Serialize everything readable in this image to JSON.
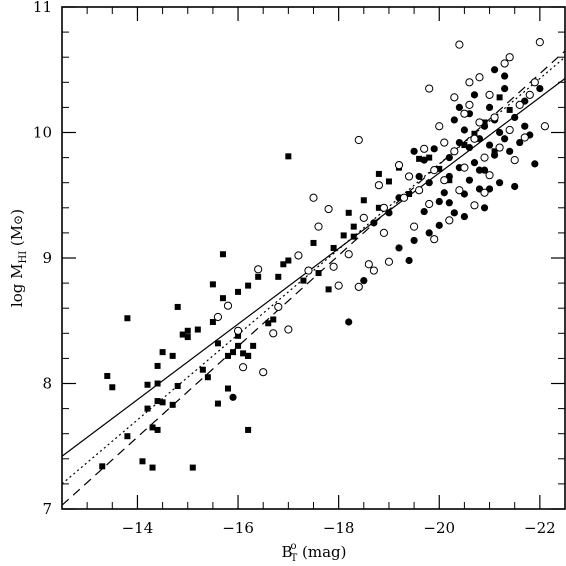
{
  "chart_data": {
    "type": "scatter",
    "title": "",
    "xlabel": {
      "main": "B",
      "sup": "o",
      "sub": "T",
      "rest": " (mag)"
    },
    "ylabel": {
      "main": "log  M",
      "sub": "HI",
      "rest": " (M",
      "sym": "⊙",
      "close": ")"
    },
    "xlim": [
      -12.5,
      -22.5
    ],
    "ylim": [
      7,
      11
    ],
    "x_ticks": [
      -14,
      -16,
      -18,
      -20,
      -22
    ],
    "x_tick_labels": [
      "−14",
      "−16",
      "−18",
      "−20",
      "−22"
    ],
    "y_ticks": [
      7,
      8,
      9,
      10,
      11
    ],
    "y_tick_labels": [
      "7",
      "8",
      "9",
      "10",
      "11"
    ],
    "grid": false,
    "series": [
      {
        "marker": "filled-square",
        "points": [
          [
            -13.3,
            7.34
          ],
          [
            -13.4,
            8.06
          ],
          [
            -13.5,
            7.97
          ],
          [
            -13.8,
            8.52
          ],
          [
            -13.8,
            7.58
          ],
          [
            -14.1,
            7.38
          ],
          [
            -14.2,
            7.99
          ],
          [
            -14.2,
            7.8
          ],
          [
            -14.3,
            7.65
          ],
          [
            -14.3,
            7.33
          ],
          [
            -14.4,
            8.14
          ],
          [
            -14.4,
            7.86
          ],
          [
            -14.4,
            7.63
          ],
          [
            -14.4,
            8.0
          ],
          [
            -14.5,
            8.25
          ],
          [
            -14.5,
            7.85
          ],
          [
            -14.7,
            7.83
          ],
          [
            -14.7,
            8.22
          ],
          [
            -14.8,
            8.61
          ],
          [
            -14.8,
            7.98
          ],
          [
            -14.9,
            8.39
          ],
          [
            -15.0,
            8.37
          ],
          [
            -15.0,
            8.42
          ],
          [
            -15.1,
            7.33
          ],
          [
            -15.2,
            8.43
          ],
          [
            -15.3,
            8.11
          ],
          [
            -15.4,
            8.05
          ],
          [
            -15.5,
            8.49
          ],
          [
            -15.5,
            8.79
          ],
          [
            -15.6,
            8.32
          ],
          [
            -15.6,
            7.84
          ],
          [
            -15.7,
            9.03
          ],
          [
            -15.7,
            8.68
          ],
          [
            -15.8,
            8.22
          ],
          [
            -15.8,
            7.96
          ],
          [
            -15.9,
            8.25
          ],
          [
            -16.0,
            8.38
          ],
          [
            -16.0,
            8.73
          ],
          [
            -16.0,
            8.3
          ],
          [
            -16.1,
            8.24
          ],
          [
            -16.2,
            8.22
          ],
          [
            -16.2,
            8.22
          ],
          [
            -16.2,
            7.63
          ],
          [
            -16.2,
            8.78
          ],
          [
            -16.3,
            8.3
          ],
          [
            -16.4,
            8.85
          ],
          [
            -16.6,
            8.48
          ],
          [
            -16.7,
            8.51
          ],
          [
            -16.8,
            8.85
          ],
          [
            -16.9,
            8.95
          ],
          [
            -17.0,
            8.98
          ],
          [
            -17.0,
            9.81
          ],
          [
            -17.3,
            8.82
          ],
          [
            -17.5,
            9.12
          ],
          [
            -17.6,
            8.88
          ],
          [
            -17.8,
            8.75
          ],
          [
            -17.9,
            9.08
          ],
          [
            -18.1,
            9.18
          ],
          [
            -18.2,
            9.36
          ],
          [
            -18.3,
            9.25
          ],
          [
            -18.3,
            9.17
          ],
          [
            -18.5,
            9.46
          ],
          [
            -18.8,
            9.67
          ],
          [
            -18.8,
            9.4
          ],
          [
            -19.0,
            9.61
          ],
          [
            -19.2,
            9.72
          ],
          [
            -19.4,
            9.51
          ],
          [
            -19.6,
            9.79
          ],
          [
            -19.8,
            9.8
          ],
          [
            -20.0,
            9.71
          ],
          [
            -20.2,
            9.62
          ],
          [
            -20.5,
            9.9
          ],
          [
            -20.7,
            9.99
          ],
          [
            -20.9,
            10.08
          ],
          [
            -21.1,
            9.85
          ],
          [
            -21.4,
            10.18
          ],
          [
            -21.2,
            10.28
          ]
        ]
      },
      {
        "marker": "filled-circle",
        "points": [
          [
            -15.9,
            7.89
          ],
          [
            -18.2,
            8.49
          ],
          [
            -18.5,
            8.82
          ],
          [
            -18.7,
            9.28
          ],
          [
            -19.0,
            9.36
          ],
          [
            -19.2,
            9.08
          ],
          [
            -19.2,
            9.48
          ],
          [
            -19.4,
            8.98
          ],
          [
            -19.5,
            9.14
          ],
          [
            -19.6,
            9.65
          ],
          [
            -19.7,
            9.37
          ],
          [
            -19.7,
            9.78
          ],
          [
            -19.8,
            9.6
          ],
          [
            -19.8,
            9.2
          ],
          [
            -19.9,
            9.87
          ],
          [
            -20.0,
            9.45
          ],
          [
            -20.0,
            9.26
          ],
          [
            -20.1,
            9.92
          ],
          [
            -20.1,
            9.52
          ],
          [
            -20.2,
            9.8
          ],
          [
            -20.2,
            9.65
          ],
          [
            -20.3,
            9.36
          ],
          [
            -20.3,
            10.1
          ],
          [
            -20.4,
            9.72
          ],
          [
            -20.4,
            9.92
          ],
          [
            -20.5,
            9.33
          ],
          [
            -20.5,
            10.02
          ],
          [
            -20.5,
            9.51
          ],
          [
            -20.6,
            9.88
          ],
          [
            -20.6,
            10.15
          ],
          [
            -20.6,
            9.62
          ],
          [
            -20.7,
            9.76
          ],
          [
            -20.7,
            10.3
          ],
          [
            -20.8,
            9.55
          ],
          [
            -20.8,
            9.95
          ],
          [
            -20.9,
            10.05
          ],
          [
            -20.9,
            9.7
          ],
          [
            -20.9,
            9.4
          ],
          [
            -21.0,
            9.9
          ],
          [
            -21.0,
            10.2
          ],
          [
            -21.1,
            9.82
          ],
          [
            -21.1,
            10.1
          ],
          [
            -21.2,
            9.6
          ],
          [
            -21.2,
            10.0
          ],
          [
            -21.3,
            10.35
          ],
          [
            -21.3,
            9.95
          ],
          [
            -21.4,
            9.85
          ],
          [
            -21.5,
            10.12
          ],
          [
            -21.5,
            9.57
          ],
          [
            -21.6,
            9.92
          ],
          [
            -21.7,
            10.05
          ],
          [
            -21.7,
            10.25
          ],
          [
            -21.8,
            9.98
          ],
          [
            -21.9,
            9.75
          ],
          [
            -21.3,
            10.45
          ],
          [
            -22.0,
            10.35
          ],
          [
            -21.1,
            10.5
          ],
          [
            -20.4,
            10.2
          ],
          [
            -19.5,
            9.85
          ],
          [
            -20.2,
            9.44
          ],
          [
            -20.8,
            9.7
          ],
          [
            -21.0,
            9.55
          ]
        ]
      },
      {
        "marker": "open-circle",
        "points": [
          [
            -15.6,
            8.53
          ],
          [
            -15.8,
            8.62
          ],
          [
            -16.0,
            8.42
          ],
          [
            -16.1,
            8.13
          ],
          [
            -16.4,
            8.91
          ],
          [
            -16.5,
            8.09
          ],
          [
            -16.7,
            8.4
          ],
          [
            -16.8,
            8.61
          ],
          [
            -17.0,
            8.43
          ],
          [
            -17.2,
            9.02
          ],
          [
            -17.4,
            8.9
          ],
          [
            -17.5,
            9.48
          ],
          [
            -17.6,
            9.25
          ],
          [
            -17.8,
            9.39
          ],
          [
            -17.9,
            8.93
          ],
          [
            -18.0,
            8.78
          ],
          [
            -18.2,
            9.03
          ],
          [
            -18.4,
            9.94
          ],
          [
            -18.4,
            8.77
          ],
          [
            -18.5,
            9.32
          ],
          [
            -18.6,
            8.95
          ],
          [
            -18.7,
            8.9
          ],
          [
            -18.8,
            9.58
          ],
          [
            -18.9,
            9.2
          ],
          [
            -18.9,
            9.4
          ],
          [
            -19.0,
            8.97
          ],
          [
            -19.2,
            9.74
          ],
          [
            -19.3,
            9.48
          ],
          [
            -19.4,
            9.65
          ],
          [
            -19.5,
            9.25
          ],
          [
            -19.6,
            9.54
          ],
          [
            -19.7,
            9.87
          ],
          [
            -19.8,
            9.43
          ],
          [
            -19.9,
            9.15
          ],
          [
            -19.9,
            9.7
          ],
          [
            -20.0,
            10.05
          ],
          [
            -20.1,
            9.62
          ],
          [
            -20.2,
            9.3
          ],
          [
            -20.3,
            10.28
          ],
          [
            -20.3,
            9.85
          ],
          [
            -20.4,
            9.54
          ],
          [
            -20.5,
            10.15
          ],
          [
            -20.5,
            9.72
          ],
          [
            -20.6,
            10.4
          ],
          [
            -20.7,
            9.95
          ],
          [
            -20.7,
            9.42
          ],
          [
            -20.8,
            10.08
          ],
          [
            -20.9,
            9.8
          ],
          [
            -21.0,
            10.3
          ],
          [
            -21.0,
            9.66
          ],
          [
            -21.1,
            10.12
          ],
          [
            -21.2,
            9.88
          ],
          [
            -21.3,
            10.55
          ],
          [
            -21.4,
            10.02
          ],
          [
            -21.5,
            9.78
          ],
          [
            -21.6,
            10.22
          ],
          [
            -21.7,
            9.96
          ],
          [
            -21.9,
            10.4
          ],
          [
            -22.0,
            10.72
          ],
          [
            -22.1,
            10.05
          ],
          [
            -21.8,
            10.3
          ],
          [
            -21.4,
            10.6
          ],
          [
            -20.4,
            10.7
          ],
          [
            -20.8,
            10.44
          ],
          [
            -19.8,
            10.35
          ],
          [
            -20.6,
            10.22
          ],
          [
            -20.1,
            9.92
          ],
          [
            -20.9,
            9.52
          ]
        ]
      }
    ],
    "lines": [
      {
        "style": "solid",
        "from": [
          -12.5,
          7.42
        ],
        "to": [
          -22.5,
          10.43
        ]
      },
      {
        "style": "dotted",
        "from": [
          -12.5,
          7.2
        ],
        "to": [
          -22.5,
          10.6
        ]
      },
      {
        "style": "dashed",
        "from": [
          -12.5,
          7.03
        ],
        "to": [
          -22.5,
          10.65
        ]
      }
    ]
  }
}
